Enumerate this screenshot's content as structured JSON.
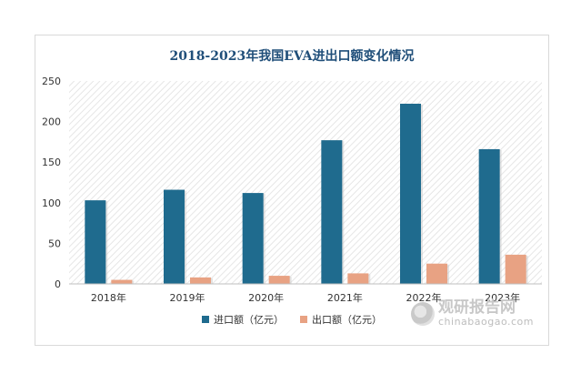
{
  "chart_data": {
    "type": "bar",
    "title": "2018-2023年我国EVA进出口额变化情况",
    "categories": [
      "2018年",
      "2019年",
      "2020年",
      "2021年",
      "2022年",
      "2023年"
    ],
    "series": [
      {
        "name": "进口额（亿元）",
        "color": "#1f6b8e",
        "values": [
          103,
          116,
          112,
          177,
          222,
          166
        ]
      },
      {
        "name": "出口额（亿元）",
        "color": "#e8a283",
        "values": [
          5,
          8,
          10,
          13,
          25,
          36
        ]
      }
    ],
    "ylim": [
      0,
      250
    ],
    "yticks": [
      0,
      50,
      100,
      150,
      200,
      250
    ],
    "grid": false,
    "legend_position": "bottom"
  },
  "watermark": {
    "cn": "观研报告网",
    "en": "chinabaogao.com"
  }
}
